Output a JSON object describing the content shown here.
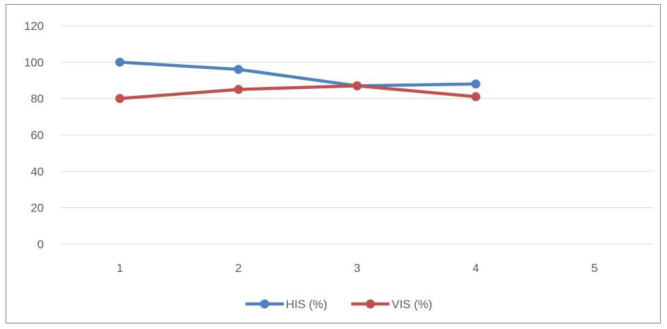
{
  "chart_data": {
    "type": "line",
    "categories": [
      "1",
      "2",
      "3",
      "4",
      "5"
    ],
    "series": [
      {
        "name": "HIS (%)",
        "values": [
          100,
          96,
          87,
          88,
          null
        ],
        "color": "#4f81bd"
      },
      {
        "name": "VIS (%)",
        "values": [
          80,
          85,
          87,
          81,
          null
        ],
        "color": "#c0504d"
      }
    ],
    "ylim": [
      0,
      120
    ],
    "yticks": [
      0,
      20,
      40,
      60,
      80,
      100,
      120
    ],
    "grid": true,
    "legend": "bottom",
    "title": "",
    "xlabel": "",
    "ylabel": ""
  }
}
